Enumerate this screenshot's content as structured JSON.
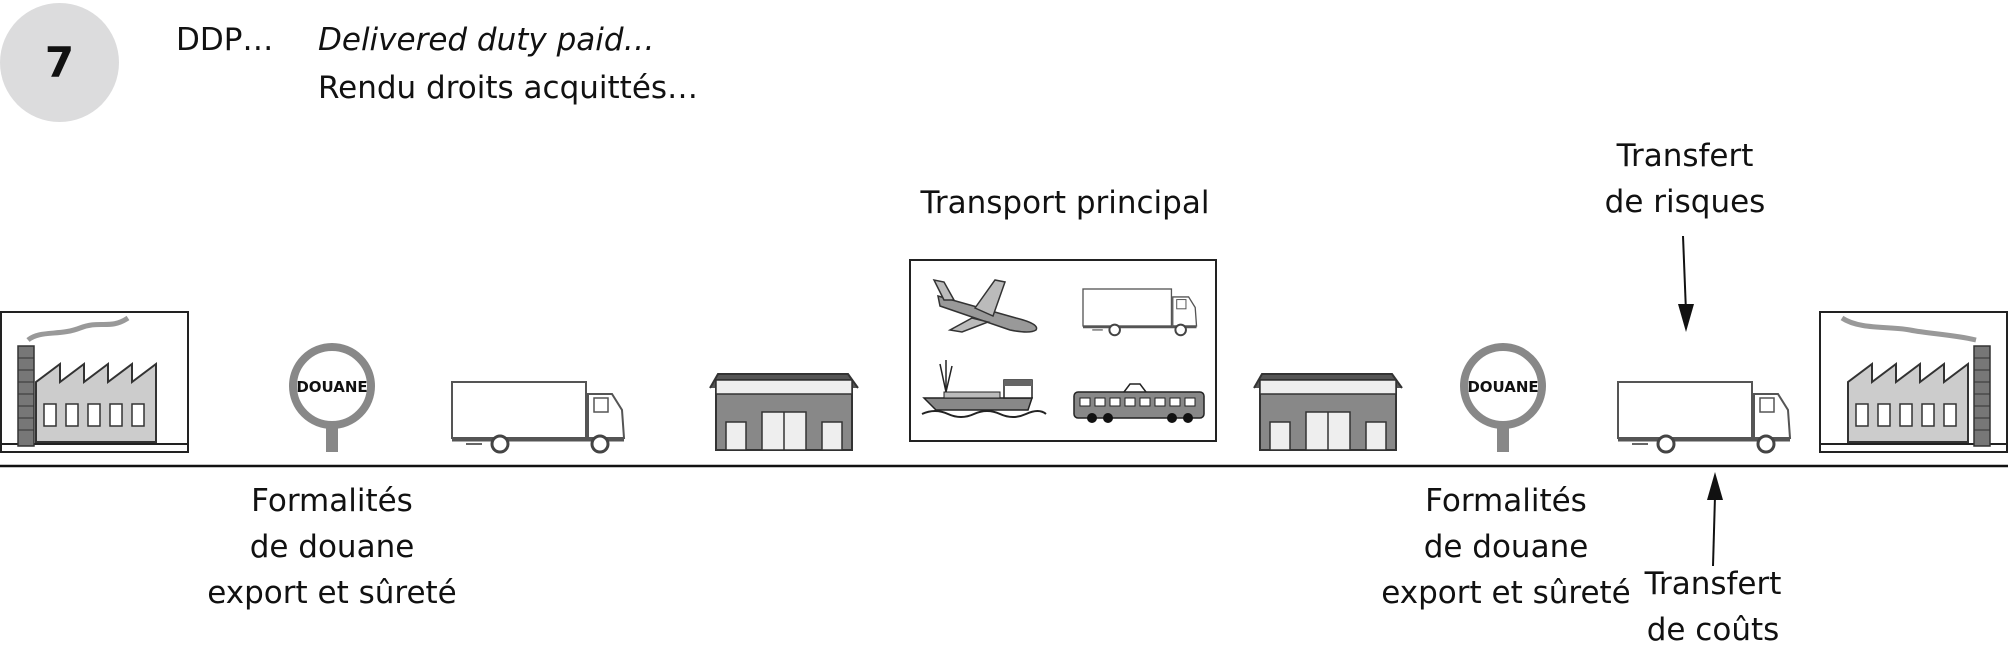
{
  "header": {
    "number": "7",
    "code": "DDP…",
    "name_en": "Delivered duty paid…",
    "name_fr": "Rendu droits acquittés…"
  },
  "labels": {
    "main_transport": "Transport principal",
    "risk_transfer": [
      "Transfert",
      "de risques"
    ],
    "cost_transfer": [
      "Transfert",
      "de coûts"
    ],
    "customs_left": [
      "Formalités",
      "de douane",
      "export et sûreté"
    ],
    "customs_right": [
      "Formalités",
      "de douane",
      "export et sûreté"
    ],
    "customs_sign_left": "DOUANE",
    "customs_sign_right": "DOUANE"
  },
  "icons": [
    "factory-icon",
    "customs-sign-icon",
    "truck-icon",
    "warehouse-icon",
    "airplane-icon",
    "ship-icon",
    "train-icon",
    "arrow-down-icon",
    "arrow-up-icon"
  ]
}
